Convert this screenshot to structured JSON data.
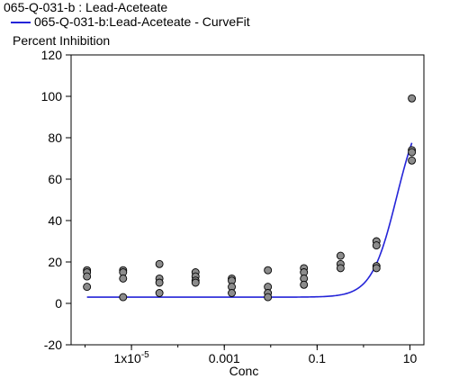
{
  "chart_data": {
    "type": "scatter",
    "legend": [
      {
        "label": "065-Q-031-b  : Lead-Aceteate",
        "kind": "points"
      },
      {
        "label": "065-Q-031-b:Lead-Aceteate - CurveFit",
        "kind": "line",
        "color": "#2424d8"
      }
    ],
    "ylabel": "Percent Inhibition",
    "xlabel": "Conc",
    "x_scale": "log",
    "xlim": [
      5e-07,
      20
    ],
    "ylim": [
      -20,
      120
    ],
    "y_ticks": [
      "-20",
      "0",
      "20",
      "40",
      "60",
      "80",
      "100",
      "120"
    ],
    "x_ticks": [
      {
        "value": 1e-05,
        "label": "1x10",
        "exp": "-5"
      },
      {
        "value": 0.001,
        "label": "0.001",
        "exp": ""
      },
      {
        "value": 0.1,
        "label": "0.1",
        "exp": ""
      },
      {
        "value": 10,
        "label": "10",
        "exp": ""
      }
    ],
    "points_color": "#8c8c8c",
    "series": [
      {
        "points": [
          [
            1.1e-06,
            16
          ],
          [
            1.1e-06,
            15
          ],
          [
            1.1e-06,
            13
          ],
          [
            1.1e-06,
            8
          ],
          [
            6.6e-06,
            16
          ],
          [
            6.6e-06,
            15
          ],
          [
            6.6e-06,
            12
          ],
          [
            6.6e-06,
            3
          ],
          [
            4e-05,
            19
          ],
          [
            4e-05,
            12
          ],
          [
            4e-05,
            10
          ],
          [
            4e-05,
            5
          ],
          [
            0.00024,
            15
          ],
          [
            0.00024,
            13
          ],
          [
            0.00024,
            11
          ],
          [
            0.00024,
            10
          ],
          [
            0.00145,
            12
          ],
          [
            0.00145,
            11
          ],
          [
            0.00145,
            8
          ],
          [
            0.00145,
            5
          ],
          [
            0.0087,
            16
          ],
          [
            0.0087,
            8
          ],
          [
            0.0087,
            5
          ],
          [
            0.0087,
            3
          ],
          [
            0.052,
            17
          ],
          [
            0.052,
            15
          ],
          [
            0.052,
            12
          ],
          [
            0.052,
            9
          ],
          [
            0.32,
            23
          ],
          [
            0.32,
            19
          ],
          [
            0.32,
            17
          ],
          [
            1.9,
            30
          ],
          [
            1.9,
            28
          ],
          [
            1.9,
            18
          ],
          [
            1.9,
            17
          ],
          [
            11,
            99
          ],
          [
            11,
            74
          ],
          [
            11,
            73
          ],
          [
            11,
            69
          ]
        ]
      }
    ],
    "curve": {
      "bottom": 3,
      "top": 100,
      "ic50": 5.2,
      "hill": 1.6,
      "color": "#2424d8"
    }
  }
}
